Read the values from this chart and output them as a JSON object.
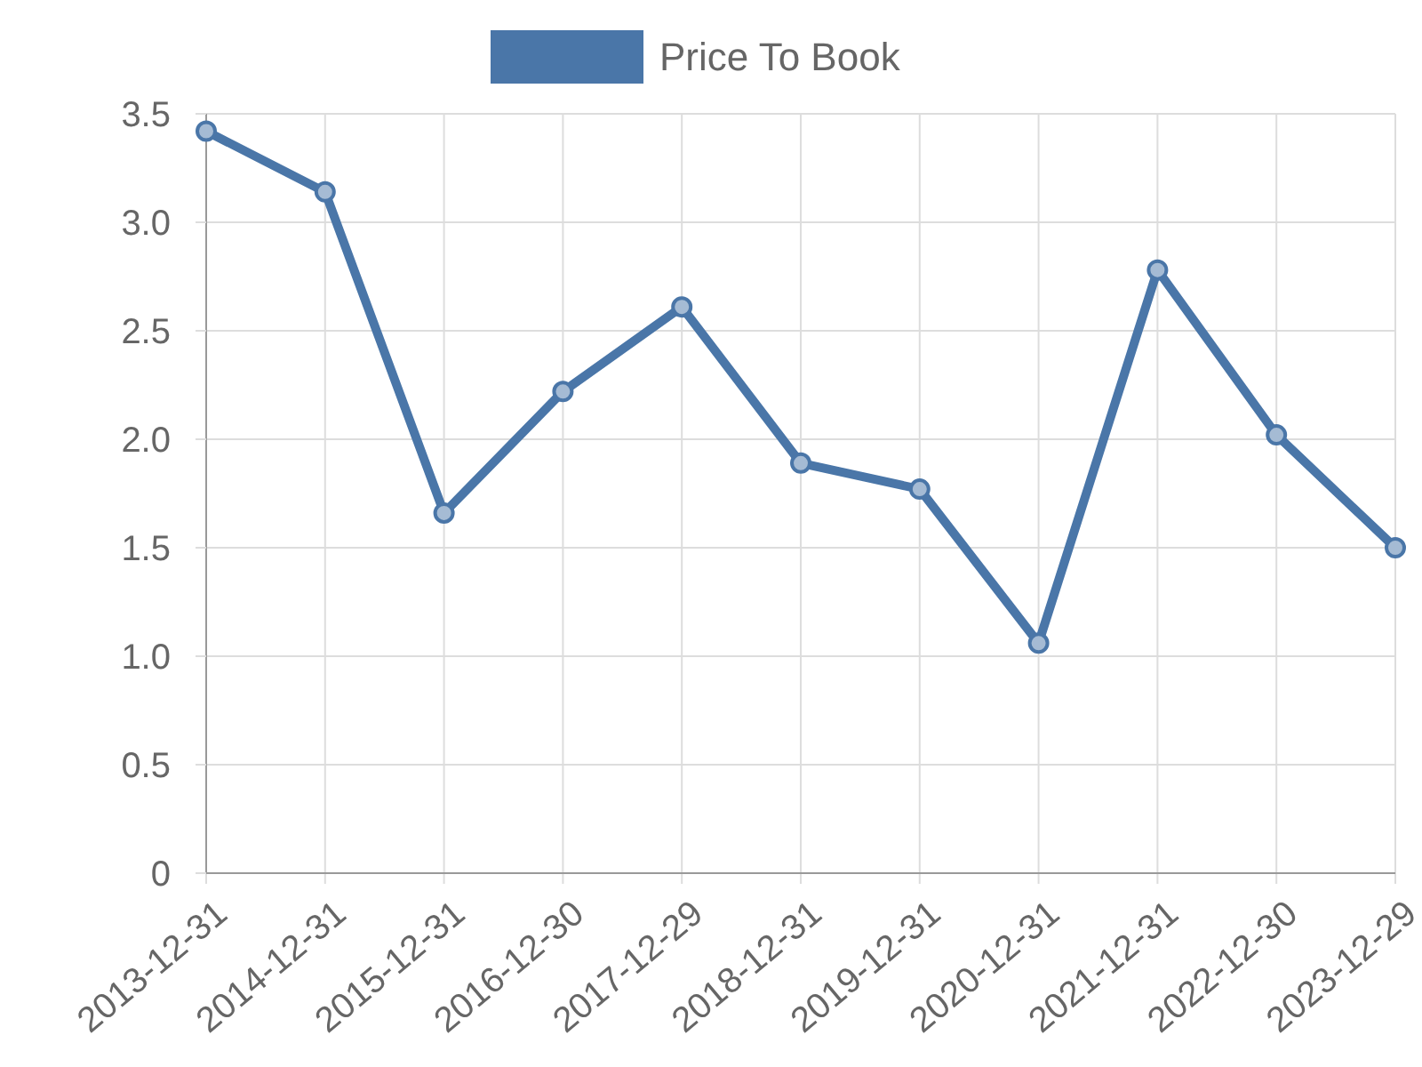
{
  "chart_data": {
    "type": "line",
    "categories": [
      "2013-12-31",
      "2014-12-31",
      "2015-12-31",
      "2016-12-30",
      "2017-12-29",
      "2018-12-31",
      "2019-12-31",
      "2020-12-31",
      "2021-12-31",
      "2022-12-30",
      "2023-12-29"
    ],
    "series": [
      {
        "name": "Price To Book",
        "color": "#4a76a8",
        "values": [
          3.42,
          3.14,
          1.66,
          2.22,
          2.61,
          1.89,
          1.77,
          1.06,
          2.78,
          2.02,
          1.5
        ]
      }
    ],
    "ylim": [
      0,
      3.5
    ],
    "yticks": [
      0,
      {
        "value": 0.5,
        "label": "0.5"
      },
      {
        "value": 1,
        "label": "1.0"
      },
      {
        "value": 1.5,
        "label": "1.5"
      },
      {
        "value": 2,
        "label": "2.0"
      },
      {
        "value": 2.5,
        "label": "2.5"
      },
      {
        "value": 3,
        "label": "3.0"
      },
      {
        "value": 3.5,
        "label": "3.5"
      }
    ],
    "grid": true,
    "legend": "top",
    "marker": "circle",
    "line_style": "solid"
  }
}
